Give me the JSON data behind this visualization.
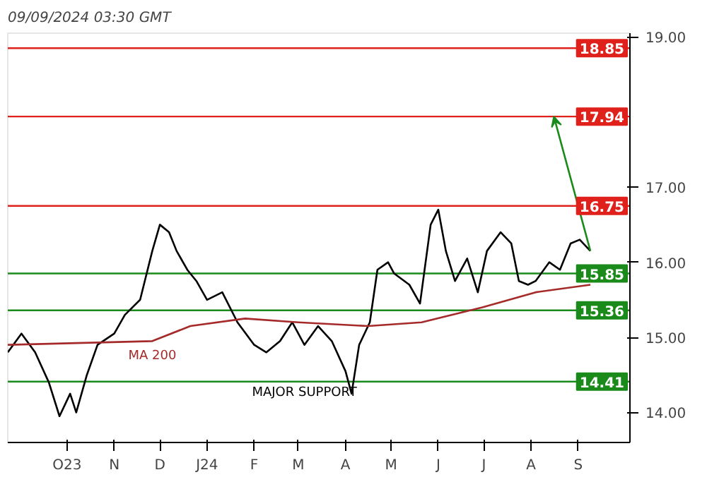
{
  "chart_data": {
    "type": "line",
    "title": "09/09/2024 03:30 GMT",
    "xlim": [
      "2023-08-23",
      "2024-10-05"
    ],
    "xticks": [
      {
        "value": "2023-10-01",
        "label": "O23"
      },
      {
        "value": "2023-11-01",
        "label": "N"
      },
      {
        "value": "2023-12-01",
        "label": "D"
      },
      {
        "value": "2024-01-01",
        "label": "J24"
      },
      {
        "value": "2024-02-01",
        "label": "F"
      },
      {
        "value": "2024-03-01",
        "label": "M"
      },
      {
        "value": "2024-04-01",
        "label": "A"
      },
      {
        "value": "2024-05-01",
        "label": "M"
      },
      {
        "value": "2024-06-01",
        "label": "J"
      },
      {
        "value": "2024-07-01",
        "label": "J"
      },
      {
        "value": "2024-08-01",
        "label": "A"
      },
      {
        "value": "2024-09-01",
        "label": "S"
      }
    ],
    "ylim": [
      13.6,
      19.05
    ],
    "yticks": [
      {
        "value": 14,
        "label": "14.00"
      },
      {
        "value": 15,
        "label": "15.00"
      },
      {
        "value": 16,
        "label": "16.00"
      },
      {
        "value": 17,
        "label": "17.00"
      },
      {
        "value": 19,
        "label": "19.00"
      }
    ],
    "grid": false,
    "legend": false,
    "series": [
      {
        "color": "#000000",
        "x": [
          "2023-08-23",
          "2023-09-01",
          "2023-09-10",
          "2023-09-19",
          "2023-09-26",
          "2023-10-03",
          "2023-10-07",
          "2023-10-14",
          "2023-10-21",
          "2023-11-01",
          "2023-11-08",
          "2023-11-18",
          "2023-11-26",
          "2023-12-01",
          "2023-12-07",
          "2023-12-12",
          "2023-12-19",
          "2023-12-25",
          "2024-01-01",
          "2024-01-11",
          "2024-01-21",
          "2024-02-01",
          "2024-02-09",
          "2024-02-18",
          "2024-02-26",
          "2024-03-05",
          "2024-03-14",
          "2024-03-23",
          "2024-04-01",
          "2024-04-05",
          "2024-04-10",
          "2024-04-17",
          "2024-04-22",
          "2024-04-29",
          "2024-05-03",
          "2024-05-13",
          "2024-05-20",
          "2024-05-27",
          "2024-06-01",
          "2024-06-06",
          "2024-06-12",
          "2024-06-20",
          "2024-06-27",
          "2024-07-03",
          "2024-07-12",
          "2024-07-19",
          "2024-07-24",
          "2024-07-30",
          "2024-08-04",
          "2024-08-13",
          "2024-08-20",
          "2024-08-27",
          "2024-09-02",
          "2024-09-09"
        ],
        "values": [
          14.8,
          15.05,
          14.8,
          14.4,
          13.95,
          14.25,
          14.0,
          14.5,
          14.9,
          15.05,
          15.3,
          15.5,
          16.15,
          16.5,
          16.4,
          16.15,
          15.9,
          15.75,
          15.5,
          15.6,
          15.2,
          14.9,
          14.8,
          14.95,
          15.2,
          14.9,
          15.15,
          14.95,
          14.55,
          14.25,
          14.9,
          15.2,
          15.9,
          16.0,
          15.85,
          15.7,
          15.45,
          16.5,
          16.7,
          16.15,
          15.75,
          16.05,
          15.6,
          16.15,
          16.4,
          16.25,
          15.75,
          15.7,
          15.75,
          16.0,
          15.9,
          16.25,
          16.3,
          16.15
        ]
      },
      {
        "name": "MA 200",
        "color": "#a52a2a",
        "x": [
          "2023-08-23",
          "2023-11-26",
          "2023-12-21",
          "2024-01-26",
          "2024-03-01",
          "2024-04-16",
          "2024-05-21",
          "2024-06-30",
          "2024-08-04",
          "2024-09-09"
        ],
        "values": [
          14.9,
          14.95,
          15.15,
          15.25,
          15.2,
          15.15,
          15.2,
          15.4,
          15.6,
          15.7
        ]
      }
    ],
    "ref_lines": [
      {
        "axis": "y",
        "value": 18.85,
        "label": "18.85",
        "color": "#e0201b"
      },
      {
        "axis": "y",
        "value": 17.94,
        "label": "17.94",
        "color": "#e0201b"
      },
      {
        "axis": "y",
        "value": 16.75,
        "label": "16.75",
        "color": "#e0201b"
      },
      {
        "axis": "y",
        "value": 15.85,
        "label": "15.85",
        "color": "#1a8a1a"
      },
      {
        "axis": "y",
        "value": 15.36,
        "label": "15.36",
        "color": "#1a8a1a"
      },
      {
        "axis": "y",
        "value": 14.41,
        "label": "14.41",
        "color": "#1a8a1a"
      }
    ],
    "annotations": [
      {
        "text": "MAJOR SUPPORT",
        "x": "2024-03-05",
        "y": 14.41
      }
    ]
  }
}
